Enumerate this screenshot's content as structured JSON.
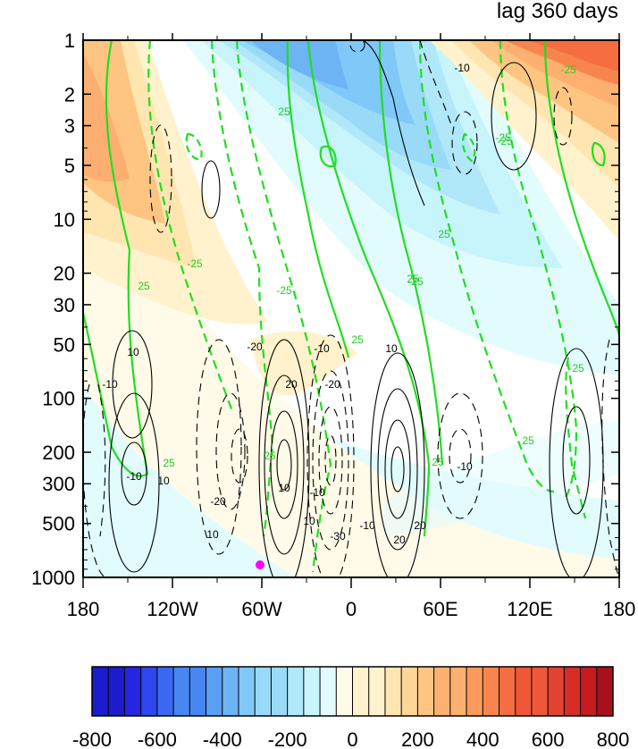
{
  "chart_data": {
    "type": "heatmap",
    "title": "lag 360 days",
    "x_tick_labels": [
      "180",
      "120W",
      "60W",
      "0",
      "60E",
      "120E",
      "180"
    ],
    "x_tick_values": [
      -180,
      -120,
      -60,
      0,
      60,
      120,
      180
    ],
    "y_tick_labels": [
      "1",
      "2",
      "3",
      "5",
      "10",
      "20",
      "30",
      "50",
      "100",
      "200",
      "300",
      "500",
      "1000"
    ],
    "y_tick_values": [
      1,
      2,
      3,
      5,
      10,
      20,
      30,
      50,
      100,
      200,
      300,
      500,
      1000
    ],
    "y_scale": "log",
    "y_reversed": true,
    "xlim": [
      -180,
      180
    ],
    "ylim": [
      1,
      1000
    ],
    "colorbar": {
      "levels": [
        -800,
        -750,
        -700,
        -650,
        -600,
        -550,
        -500,
        -450,
        -400,
        -350,
        -300,
        -250,
        -200,
        -150,
        -100,
        -50,
        0,
        50,
        100,
        150,
        200,
        250,
        300,
        350,
        400,
        450,
        500,
        550,
        600,
        650,
        700,
        750,
        800
      ],
      "tick_labels": [
        "-800",
        "-600",
        "-400",
        "-200",
        "0",
        "200",
        "400",
        "600",
        "800"
      ],
      "tick_values": [
        -800,
        -600,
        -400,
        -200,
        0,
        200,
        400,
        600,
        800
      ],
      "colors": [
        "#1c1ccc",
        "#2626e0",
        "#2e46ee",
        "#3a68f2",
        "#4886f2",
        "#5aa0f2",
        "#6cb4f4",
        "#80c8f8",
        "#98daf8",
        "#b0e8fa",
        "#c8f4fc",
        "#e2fcfe",
        "#fffbe8",
        "#fff2cc",
        "#ffe6b0",
        "#ffd698",
        "#fec482",
        "#feb070",
        "#fc9a5e",
        "#f8844e",
        "#f46e42",
        "#ee5838",
        "#e44230",
        "#d82c26",
        "#c41a20",
        "#a8101e"
      ]
    },
    "contour_labels_black": [
      "-10",
      "10",
      "-10",
      "10",
      "-20",
      "20",
      "-10",
      "10",
      "-20",
      "-10",
      "-30",
      "10",
      "20",
      "10",
      "-10",
      "10",
      "-20",
      "-10",
      "20",
      "-10"
    ],
    "contour_labels_green": [
      "25",
      "-25",
      "25",
      "-25",
      "25",
      "-25",
      "25",
      "-25",
      "25",
      "-25",
      "25",
      "25",
      "-25",
      "-25",
      "25",
      "25"
    ],
    "marker": {
      "lon": -60,
      "lev": 900,
      "color": "#ff00ff"
    }
  }
}
